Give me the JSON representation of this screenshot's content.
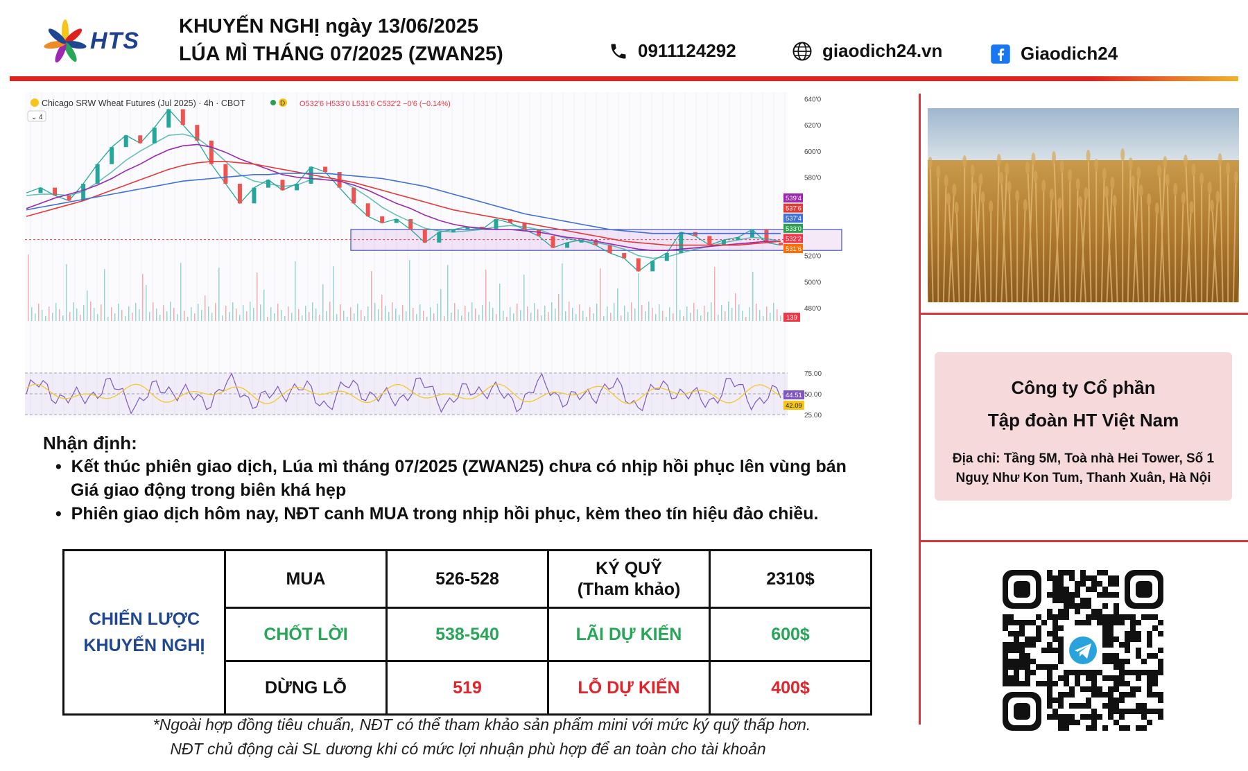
{
  "header": {
    "logo_text": "HTS",
    "title_line1": "KHUYẾN NGHỊ ngày 13/06/2025",
    "title_line2": "LÚA MÌ THÁNG 07/2025 (ZWAN25)",
    "phone": "0911124292",
    "website": "giaodich24.vn",
    "facebook": "Giaodich24",
    "icons": [
      "phone-icon",
      "globe-icon",
      "facebook-icon"
    ],
    "accent_color": "#e0201d"
  },
  "chart_data": {
    "type": "line",
    "title": "Chicago SRW Wheat Futures (Jul 2025) · 4h · CBOT",
    "interval_badge": "D",
    "ohlc_text": "O532'6 H533'0 L531'6 C532'2 −0'6 (−0.14%)",
    "indicator_count": "4",
    "y_ticks": [
      "640'0",
      "620'0",
      "600'0",
      "580'0",
      "520'0",
      "500'0",
      "480'0"
    ],
    "ylim": [
      470,
      645
    ],
    "price_labels": [
      {
        "text": "539'4",
        "value": 539.5,
        "color": "#9c27b0"
      },
      {
        "text": "537'6",
        "value": 537.75,
        "color": "#e53935"
      },
      {
        "text": "537'4",
        "value": 537.5,
        "color": "#3f6fd8"
      },
      {
        "text": "533'0",
        "value": 533.0,
        "color": "#2e9e4f"
      },
      {
        "text": "532'2",
        "value": 532.25,
        "color": "#f23645"
      },
      {
        "text": "531'6",
        "value": 531.75,
        "color": "#ff6d00"
      }
    ],
    "volume_label": "139",
    "rsi_ticks": [
      "75.00",
      "50.00",
      "25.00"
    ],
    "rsi_labels": [
      {
        "text": "44.51",
        "color": "#7e57c2"
      },
      {
        "text": "42.09",
        "color": "#f5c518"
      }
    ],
    "zone": {
      "y_top": 540,
      "y_bottom": 524
    },
    "series": [
      {
        "name": "Price",
        "color": "#26a69a",
        "values": [
          568,
          572,
          566,
          562,
          575,
          590,
          603,
          612,
          606,
          618,
          632,
          620,
          608,
          590,
          575,
          560,
          572,
          578,
          570,
          575,
          588,
          584,
          572,
          560,
          550,
          545,
          548,
          540,
          530,
          538,
          540,
          542,
          540,
          548,
          545,
          540,
          535,
          526,
          530,
          532,
          528,
          522,
          518,
          508,
          516,
          522,
          538,
          535,
          528,
          532,
          534,
          540,
          530,
          528
        ]
      },
      {
        "name": "MA20",
        "color": "#26a69a",
        "values": [
          566,
          567,
          567,
          566,
          569,
          576,
          584,
          593,
          600,
          606,
          612,
          613,
          610,
          602,
          592,
          582,
          577,
          575,
          573,
          574,
          578,
          580,
          578,
          572,
          565,
          557,
          551,
          546,
          541,
          539,
          538,
          539,
          540,
          542,
          543,
          542,
          540,
          536,
          533,
          531,
          530,
          528,
          525,
          520,
          518,
          519,
          522,
          525,
          527,
          530,
          532,
          534,
          533,
          531
        ]
      },
      {
        "name": "MA50",
        "color": "#9c27b0",
        "values": [
          556,
          560,
          564,
          567,
          570,
          574,
          579,
          585,
          590,
          596,
          601,
          604,
          605,
          603,
          599,
          594,
          590,
          586,
          582,
          580,
          579,
          578,
          577,
          574,
          570,
          565,
          560,
          556,
          551,
          547,
          544,
          542,
          541,
          540,
          540,
          539,
          538,
          536,
          534,
          533,
          531,
          529,
          527,
          525,
          524,
          524,
          525,
          526,
          527,
          528,
          529,
          530,
          531,
          531
        ]
      },
      {
        "name": "MA100",
        "color": "#e53935",
        "values": [
          550,
          553,
          556,
          559,
          562,
          566,
          570,
          574,
          578,
          582,
          586,
          589,
          591,
          592,
          592,
          591,
          590,
          588,
          586,
          584,
          582,
          580,
          578,
          576,
          573,
          570,
          567,
          564,
          561,
          558,
          555,
          553,
          551,
          549,
          547,
          545,
          543,
          541,
          539,
          537,
          535,
          533,
          531,
          530,
          529,
          528,
          528,
          528,
          528,
          528,
          528,
          529,
          530,
          531
        ]
      },
      {
        "name": "MA200",
        "color": "#3f6fd8",
        "values": [
          555,
          557,
          559,
          561,
          563,
          565,
          567,
          569,
          571,
          573,
          575,
          577,
          578,
          579,
          580,
          581,
          582,
          582,
          583,
          583,
          583,
          583,
          582,
          581,
          580,
          579,
          577,
          575,
          573,
          570,
          567,
          564,
          561,
          558,
          555,
          552,
          550,
          548,
          546,
          544,
          542,
          540,
          539,
          538,
          537,
          537,
          537,
          537,
          537,
          537,
          537,
          537,
          537,
          537
        ]
      }
    ]
  },
  "analysis": {
    "title": "Nhận định:",
    "bullet1_line1": "Kết thúc phiên giao dịch, Lúa mì tháng 07/2025 (ZWAN25) chưa có nhịp hồi phục lên vùng bán",
    "bullet1_line2": "Giá giao động trong biên khá hẹp",
    "bullet2": "Phiên giao dịch hôm nay, NĐT canh MUA trong nhịp hồi phục, kèm theo tín hiệu đảo chiều.",
    "bullet_symbol": "•"
  },
  "strategy": {
    "label_line1": "CHIẾN LƯỢC",
    "label_line2": "KHUYẾN NGHỊ",
    "rows": [
      {
        "c1": "MUA",
        "c2": "526-528",
        "c3": "KÝ QUỸ",
        "c3b": "(Tham khảo)",
        "c4": "2310$"
      },
      {
        "c1": "CHỐT LỜI",
        "c2": "538-540",
        "c3": "LÃI DỰ KIẾN",
        "c4": "600$"
      },
      {
        "c1": "DỪNG LỖ",
        "c2": "519",
        "c3": "LỖ DỰ KIẾN",
        "c4": "400$"
      }
    ],
    "colors": {
      "title": "#1f4690",
      "green": "#27a657",
      "red": "#e0242c"
    }
  },
  "notes": {
    "line1": "*Ngoài hợp đồng tiêu chuẩn, NĐT có thể tham khảo sản phẩm mini với mức ký quỹ thấp hơn.",
    "line2": "NĐT chủ động cài SL dương khi có mức lợi nhuận phù hợp để an toàn cho tài khoản"
  },
  "company": {
    "name_line1": "Công ty Cổ phần",
    "name_line2": "Tập đoàn HT Việt Nam",
    "address_line1": "Địa chỉ: Tầng 5M, Toà nhà Hei Tower, Số 1",
    "address_line2": "Nguỵ Như Kon Tum, Thanh Xuân, Hà Nội"
  },
  "qr": {
    "icon": "telegram-icon"
  }
}
